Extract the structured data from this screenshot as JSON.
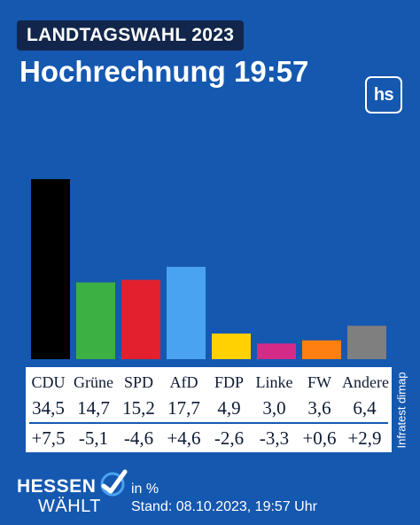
{
  "header": {
    "badge": "LANDTAGSWAHL 2023",
    "title": "Hochrechnung 19:57",
    "logo_text": "hs"
  },
  "chart_data": {
    "type": "bar",
    "categories": [
      "CDU",
      "Grüne",
      "SPD",
      "AfD",
      "FDP",
      "Linke",
      "FW",
      "Andere"
    ],
    "values": [
      34.5,
      14.7,
      15.2,
      17.7,
      4.9,
      3.0,
      3.6,
      6.4
    ],
    "value_labels": [
      "34,5",
      "14,7",
      "15,2",
      "17,7",
      "4,9",
      "3,0",
      "3,6",
      "6,4"
    ],
    "diff_labels": [
      "+7,5",
      "-5,1",
      "-4,6",
      "+4,6",
      "-2,6",
      "-3,3",
      "+0,6",
      "+2,9"
    ],
    "colors": [
      "#000000",
      "#3cb043",
      "#e2202e",
      "#4aa3f0",
      "#ffd200",
      "#d62a87",
      "#ff7f10",
      "#7f7f7f"
    ],
    "unit": "in %",
    "title": "",
    "xlabel": "",
    "ylabel": "",
    "grid": false,
    "legend": "none"
  },
  "source": "Infratest dimap",
  "footer": {
    "brand_line1": "HESSEN",
    "brand_line2": "WÄHLT",
    "unit": "in %",
    "stand": "Stand: 08.10.2023, 19:57 Uhr"
  },
  "colors": {
    "background": "#1558b0",
    "badge": "#12264b",
    "accent": "#4aa3f0"
  }
}
